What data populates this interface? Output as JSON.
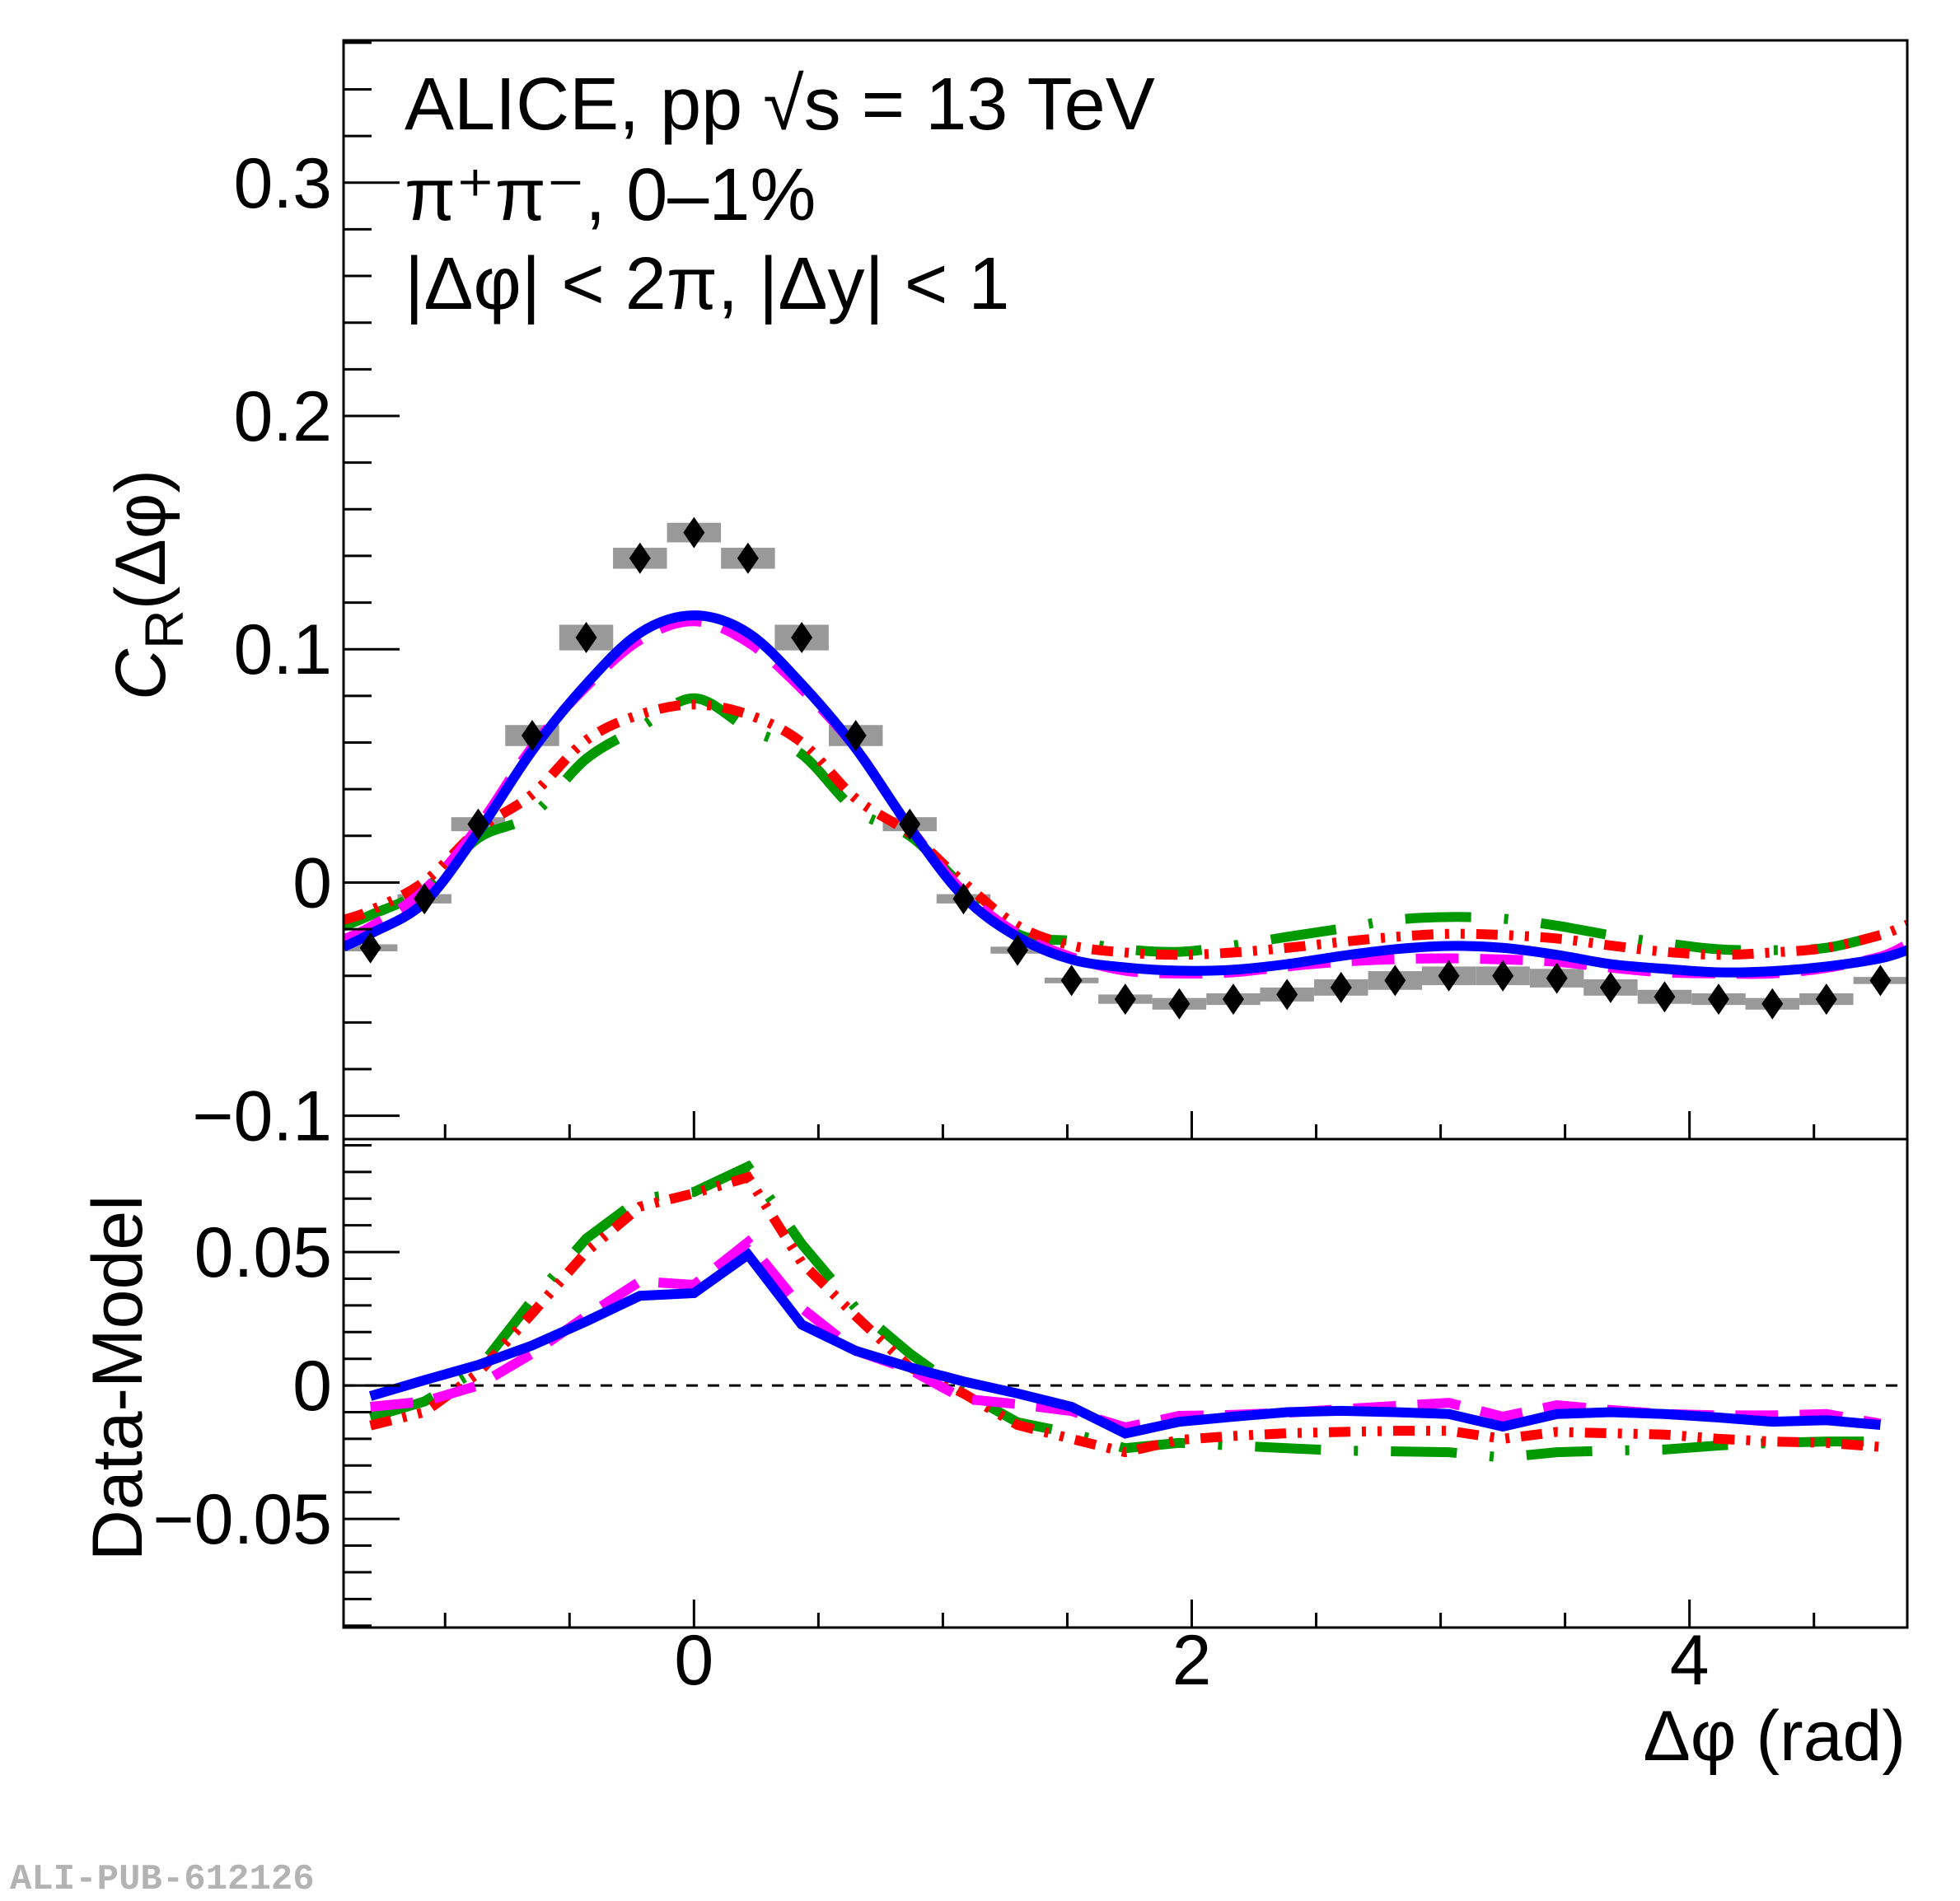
{
  "chart_data": [
    {
      "panel": "upper",
      "type": "scatter",
      "title": "",
      "annotations": [
        "ALICE, pp √s = 13 TeV",
        "π⁺π⁻, 0–1%",
        "|Δφ| < 2π, |Δy| < 1"
      ],
      "xlabel": "Δφ (rad)",
      "ylabel": "C_R(Δφ)",
      "ylabel_main": "C",
      "ylabel_sub": "R",
      "ylabel_rest": "(Δφ)",
      "xlim": [
        -1.408,
        4.875
      ],
      "ylim": [
        -0.11,
        0.361
      ],
      "x_ticks": [
        0,
        2,
        4
      ],
      "x_tick_labels": [
        "0",
        "2",
        "4"
      ],
      "y_ticks": [
        -0.1,
        0,
        0.1,
        0.2,
        0.3
      ],
      "y_tick_labels": [
        "−0.1",
        "0",
        "0.1",
        "0.2",
        "0.3"
      ],
      "grid": false,
      "legend": "none",
      "bin_width": 0.21666,
      "x": [
        -1.3,
        -1.083,
        -0.867,
        -0.65,
        -0.433,
        -0.217,
        0.0,
        0.217,
        0.433,
        0.65,
        0.867,
        1.083,
        1.3,
        1.517,
        1.733,
        1.95,
        2.167,
        2.383,
        2.6,
        2.817,
        3.033,
        3.25,
        3.467,
        3.683,
        3.9,
        4.117,
        4.333,
        4.55,
        4.767
      ],
      "data": {
        "name": "Data",
        "marker": "diamond",
        "color": "#000000",
        "values": [
          -0.028,
          -0.007,
          0.025,
          0.063,
          0.105,
          0.139,
          0.15,
          0.139,
          0.105,
          0.063,
          0.025,
          -0.007,
          -0.029,
          -0.042,
          -0.05,
          -0.052,
          -0.05,
          -0.048,
          -0.045,
          -0.042,
          -0.04,
          -0.04,
          -0.041,
          -0.045,
          -0.049,
          -0.05,
          -0.052,
          -0.05,
          -0.042
        ],
        "syst": [
          0.0015,
          0.002,
          0.003,
          0.0045,
          0.0055,
          0.0045,
          0.0042,
          0.0045,
          0.0055,
          0.0045,
          0.003,
          0.002,
          0.0015,
          0.0012,
          0.002,
          0.0025,
          0.0025,
          0.003,
          0.0035,
          0.004,
          0.004,
          0.004,
          0.004,
          0.0035,
          0.003,
          0.0025,
          0.0025,
          0.0025,
          0.0015
        ],
        "syst_color": "#999999"
      },
      "model_x": [
        -1.408,
        -1.3,
        -1.083,
        -0.867,
        -0.65,
        -0.433,
        -0.217,
        0.0,
        0.217,
        0.433,
        0.65,
        0.867,
        1.083,
        1.3,
        1.517,
        1.733,
        1.95,
        2.167,
        2.383,
        2.6,
        2.817,
        3.033,
        3.25,
        3.467,
        3.683,
        3.9,
        4.117,
        4.333,
        4.55,
        4.767,
        4.875
      ],
      "models": [
        {
          "name": "model-blue-solid",
          "color": "#0000ff",
          "dash": "solid",
          "values": [
            -0.0276,
            -0.022,
            -0.0085,
            0.0216,
            0.0565,
            0.085,
            0.107,
            0.1145,
            0.107,
            0.085,
            0.0575,
            0.0236,
            -0.006,
            -0.0233,
            -0.033,
            -0.0364,
            -0.0378,
            -0.0374,
            -0.035,
            -0.0315,
            -0.0286,
            -0.0272,
            -0.028,
            -0.031,
            -0.035,
            -0.037,
            -0.0385,
            -0.038,
            -0.036,
            -0.0325,
            -0.029
          ]
        },
        {
          "name": "model-magenta-dashed",
          "color": "#ff00ff",
          "dash": "long-dash",
          "values": [
            -0.0244,
            -0.019,
            -0.0032,
            0.024,
            0.058,
            0.084,
            0.104,
            0.112,
            0.103,
            0.083,
            0.0575,
            0.0236,
            -0.004,
            -0.022,
            -0.032,
            -0.0378,
            -0.039,
            -0.0385,
            -0.036,
            -0.034,
            -0.0329,
            -0.0325,
            -0.033,
            -0.034,
            -0.0365,
            -0.0385,
            -0.039,
            -0.039,
            -0.0366,
            -0.0318,
            -0.0265
          ]
        },
        {
          "name": "model-red-dashdot",
          "color": "#ff0000",
          "dash": "dash-dot-dot",
          "values": [
            -0.016,
            -0.012,
            0.0004,
            0.0226,
            0.0378,
            0.061,
            0.072,
            0.0763,
            0.072,
            0.06,
            0.036,
            0.021,
            0.0,
            -0.0185,
            -0.027,
            -0.03,
            -0.031,
            -0.03,
            -0.028,
            -0.0255,
            -0.0233,
            -0.022,
            -0.0225,
            -0.024,
            -0.027,
            -0.0297,
            -0.031,
            -0.03,
            -0.028,
            -0.0225,
            -0.018
          ]
        },
        {
          "name": "model-green-longdashdot",
          "color": "#009900",
          "dash": "long-dash-dot",
          "values": [
            -0.0187,
            -0.014,
            -0.003,
            0.019,
            0.029,
            0.053,
            0.0665,
            0.079,
            0.066,
            0.055,
            0.031,
            0.02,
            -0.002,
            -0.022,
            -0.025,
            -0.0286,
            -0.0297,
            -0.027,
            -0.0233,
            -0.0198,
            -0.016,
            -0.0148,
            -0.0155,
            -0.0185,
            -0.0226,
            -0.026,
            -0.0286,
            -0.029,
            -0.028,
            -0.0226,
            -0.02
          ]
        }
      ]
    },
    {
      "panel": "lower",
      "type": "line",
      "xlabel": "Δφ (rad)",
      "ylabel": "Data-Model",
      "xlim": [
        -1.408,
        4.875
      ],
      "ylim": [
        -0.0907,
        0.0923
      ],
      "x_ticks": [
        0,
        2,
        4
      ],
      "x_tick_labels": [
        "0",
        "2",
        "4"
      ],
      "y_ticks": [
        -0.05,
        0,
        0.05
      ],
      "y_tick_labels": [
        "−0.05",
        "0",
        "0.05"
      ],
      "reference_line": 0,
      "grid": false,
      "legend": "none",
      "x": [
        -1.3,
        -1.083,
        -0.867,
        -0.65,
        -0.433,
        -0.217,
        0.0,
        0.217,
        0.433,
        0.65,
        0.867,
        1.083,
        1.3,
        1.517,
        1.733,
        1.95,
        2.167,
        2.383,
        2.6,
        2.817,
        3.033,
        3.25,
        3.467,
        3.683,
        3.9,
        4.117,
        4.333,
        4.55,
        4.767
      ],
      "series": [
        {
          "name": "model-blue-solid",
          "color": "#0000ff",
          "dash": "solid",
          "values": [
            -0.004,
            0.002,
            0.0077,
            0.015,
            0.024,
            0.0336,
            0.0346,
            0.049,
            0.0228,
            0.013,
            0.0068,
            0.0015,
            -0.003,
            -0.008,
            -0.018,
            -0.0136,
            -0.0117,
            -0.01,
            -0.0095,
            -0.01,
            -0.0107,
            -0.0154,
            -0.0107,
            -0.01,
            -0.0107,
            -0.012,
            -0.0136,
            -0.013,
            -0.0148
          ]
        },
        {
          "name": "model-magenta-dashed",
          "color": "#ff00ff",
          "dash": "long-dash",
          "values": [
            -0.008,
            -0.006,
            0.0,
            0.012,
            0.026,
            0.039,
            0.0377,
            0.0537,
            0.029,
            0.013,
            0.006,
            -0.005,
            -0.007,
            -0.0096,
            -0.0157,
            -0.0114,
            -0.011,
            -0.0102,
            -0.0089,
            -0.0077,
            -0.0065,
            -0.0117,
            -0.0074,
            -0.0092,
            -0.0107,
            -0.0112,
            -0.0112,
            -0.0107,
            -0.0143
          ]
        },
        {
          "name": "model-red-dashdot",
          "color": "#ff0000",
          "dash": "dash-dot-dot",
          "values": [
            -0.015,
            -0.01,
            0.0046,
            0.027,
            0.05,
            0.067,
            0.072,
            0.078,
            0.046,
            0.026,
            0.0068,
            -0.003,
            -0.0148,
            -0.02,
            -0.025,
            -0.0204,
            -0.0189,
            -0.0179,
            -0.0174,
            -0.017,
            -0.017,
            -0.02,
            -0.0174,
            -0.0179,
            -0.0184,
            -0.02,
            -0.021,
            -0.0215,
            -0.023
          ]
        },
        {
          "name": "model-green-longdashdot",
          "color": "#009900",
          "dash": "long-dash-dot",
          "values": [
            -0.012,
            -0.006,
            0.006,
            0.032,
            0.055,
            0.07,
            0.0725,
            0.082,
            0.053,
            0.029,
            0.012,
            -0.0025,
            -0.0138,
            -0.0179,
            -0.0235,
            -0.0215,
            -0.0225,
            -0.0235,
            -0.0244,
            -0.0247,
            -0.025,
            -0.027,
            -0.025,
            -0.0244,
            -0.024,
            -0.0225,
            -0.0215,
            -0.021,
            -0.021
          ]
        }
      ]
    }
  ],
  "watermark": "ALI-PUB-612126"
}
